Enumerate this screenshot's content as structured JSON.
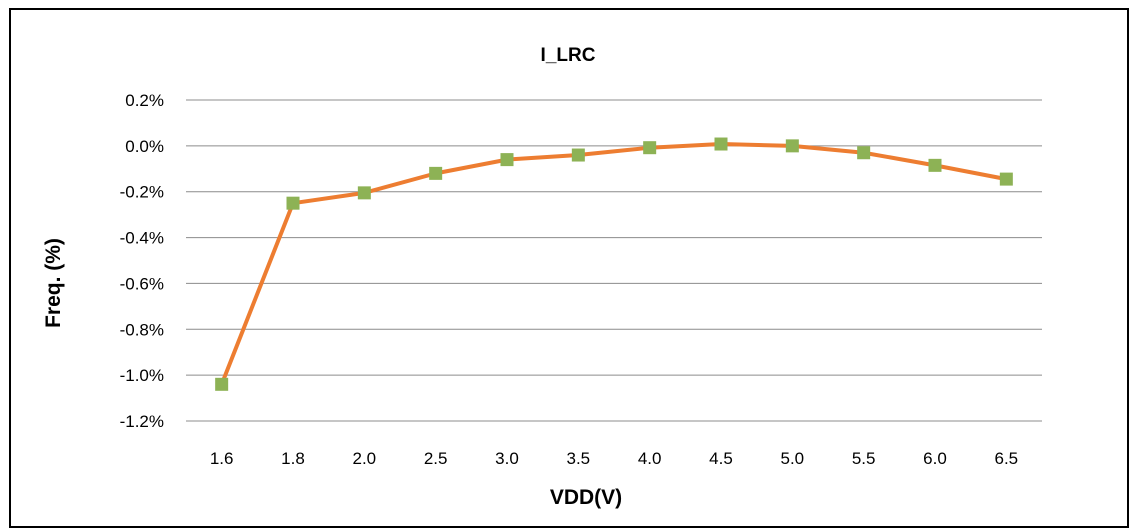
{
  "chart_data": {
    "type": "line",
    "title": "I_LRC",
    "xlabel": "VDD(V)",
    "ylabel": "Freq. (%)",
    "categories": [
      "1.6",
      "1.8",
      "2.0",
      "2.5",
      "3.0",
      "3.5",
      "4.0",
      "4.5",
      "5.0",
      "5.5",
      "6.0",
      "6.5"
    ],
    "series": [
      {
        "values": [
          -1.04,
          -0.25,
          -0.205,
          -0.12,
          -0.06,
          -0.04,
          -0.008,
          0.008,
          0.0,
          -0.03,
          -0.085,
          -0.145
        ],
        "line_color": "#ED7D31",
        "marker_color": "#8DB255",
        "marker": "square"
      }
    ],
    "ylim": [
      -1.2,
      0.2
    ],
    "yticks": [
      "0.2%",
      "0.0%",
      "-0.2%",
      "-0.4%",
      "-0.6%",
      "-0.8%",
      "-1.0%",
      "-1.2%"
    ],
    "grid": "horizontal",
    "legend": "none"
  }
}
